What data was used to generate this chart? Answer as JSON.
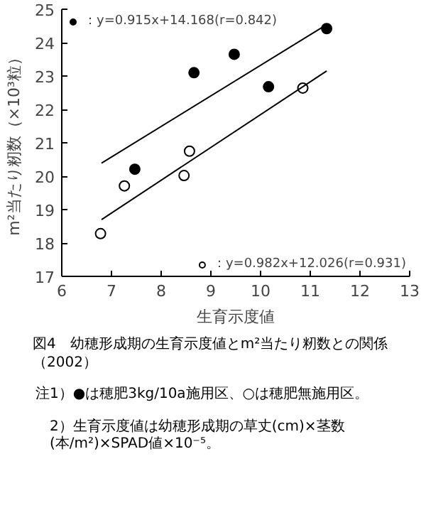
{
  "chart_data": {
    "type": "scatter",
    "title": "図4　幼穂形成期の生育示度値とm²当たり籾数との関係（2002）",
    "xlabel": "生育示度値",
    "ylabel": "m²当たり籾数（×10³粒）",
    "xlim": [
      6,
      13
    ],
    "xticks": [
      6,
      7,
      8,
      9,
      10,
      11,
      12,
      13
    ],
    "ylim": [
      17,
      25
    ],
    "yticks": [
      17,
      18,
      19,
      20,
      21,
      22,
      23,
      24,
      25
    ],
    "grid": false,
    "legend": "top left",
    "series": [
      {
        "name": "：y=0.915x+14.168(r=0.842)",
        "color": "#000000",
        "marker": "circle",
        "x": [
          7.47,
          8.66,
          9.47,
          10.16,
          11.33
        ],
        "values": [
          20.21,
          23.1,
          23.65,
          22.68,
          24.42
        ]
      },
      {
        "name": "：y=0.982x+12.026(r=0.931)",
        "color": "#ffffff",
        "marker": "circle",
        "x": [
          6.78,
          7.26,
          8.46,
          8.57,
          10.85
        ],
        "values": [
          18.28,
          19.71,
          20.02,
          20.75,
          22.64
        ]
      },
      {
        "type": "line",
        "color": "#000000",
        "x": [
          6.8,
          11.33
        ],
        "values": [
          20.39,
          24.54
        ]
      },
      {
        "type": "line",
        "color": "#000000",
        "x": [
          6.8,
          11.33
        ],
        "values": [
          18.7,
          23.15
        ]
      }
    ],
    "annotations": [
      "注1）●は穂肥3kg/10a施用区、○は穂肥無施用区。",
      "2）生育示度値は幼穂形成期の草丈(cm)×茎数(本/m²)×SPAD値×10⁻⁵。"
    ]
  }
}
